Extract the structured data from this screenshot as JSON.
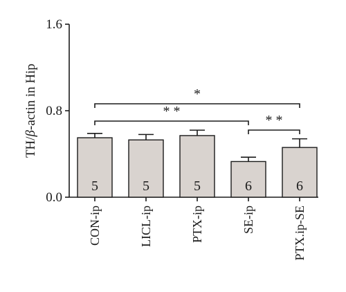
{
  "chart_data": {
    "type": "bar",
    "ylabel_prefix": "TH/",
    "ylabel_symbol": "β",
    "ylabel_suffix": "-actin in Hip",
    "ylim": [
      0.0,
      1.6
    ],
    "yticks": [
      "0.0",
      "0.8",
      "1.6"
    ],
    "categories": [
      "CON-ip",
      "LICL-ip",
      "PTX-ip",
      "SE-ip",
      "PTX.ip-SE"
    ],
    "values": [
      0.55,
      0.53,
      0.57,
      0.33,
      0.46
    ],
    "errors": [
      0.04,
      0.05,
      0.05,
      0.04,
      0.08
    ],
    "n_labels": [
      "5",
      "5",
      "5",
      "6",
      "6"
    ],
    "significance": [
      {
        "from": "CON-ip",
        "to": "PTX.ip-SE",
        "label": "*"
      },
      {
        "from": "CON-ip",
        "to": "SE-ip",
        "label": "**"
      },
      {
        "from": "SE-ip",
        "to": "PTX.ip-SE",
        "label": "**"
      }
    ],
    "bar_color": "#d9d3cf",
    "edge_color": "#1a1a1a"
  }
}
